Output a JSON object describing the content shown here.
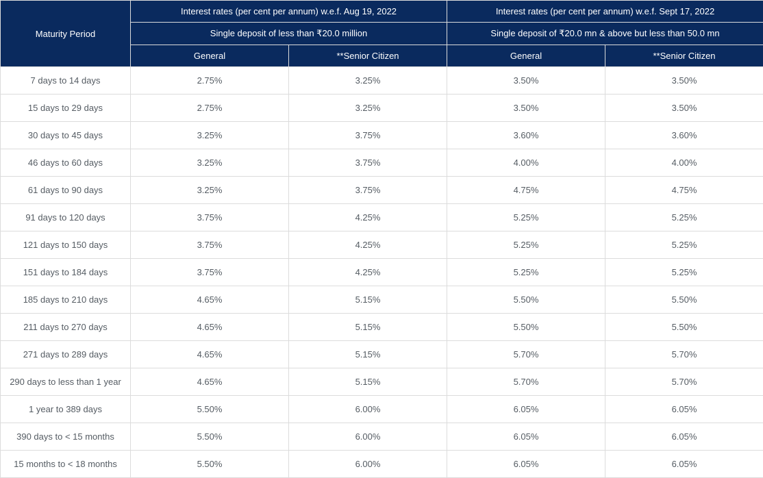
{
  "table": {
    "header": {
      "maturity_label": "Maturity Period",
      "group1_title": "Interest rates (per cent per annum) w.e.f. Aug 19, 2022",
      "group1_sub": "Single deposit of less than ₹20.0 million",
      "group2_title": "Interest rates (per cent per annum) w.e.f. Sept 17, 2022",
      "group2_sub": "Single deposit of ₹20.0 mn & above but less than 50.0 mn",
      "col_general": "General",
      "col_senior": "**Senior Citizen"
    },
    "rows": [
      {
        "maturity": "7 days to 14 days",
        "g1_general": "2.75%",
        "g1_senior": "3.25%",
        "g2_general": "3.50%",
        "g2_senior": "3.50%"
      },
      {
        "maturity": "15 days to 29 days",
        "g1_general": "2.75%",
        "g1_senior": "3.25%",
        "g2_general": "3.50%",
        "g2_senior": "3.50%"
      },
      {
        "maturity": "30 days to 45 days",
        "g1_general": "3.25%",
        "g1_senior": "3.75%",
        "g2_general": "3.60%",
        "g2_senior": "3.60%"
      },
      {
        "maturity": "46 days to 60 days",
        "g1_general": "3.25%",
        "g1_senior": "3.75%",
        "g2_general": "4.00%",
        "g2_senior": "4.00%"
      },
      {
        "maturity": "61 days to 90 days",
        "g1_general": "3.25%",
        "g1_senior": "3.75%",
        "g2_general": "4.75%",
        "g2_senior": "4.75%"
      },
      {
        "maturity": "91 days to 120 days",
        "g1_general": "3.75%",
        "g1_senior": "4.25%",
        "g2_general": "5.25%",
        "g2_senior": "5.25%"
      },
      {
        "maturity": "121 days to 150 days",
        "g1_general": "3.75%",
        "g1_senior": "4.25%",
        "g2_general": "5.25%",
        "g2_senior": "5.25%"
      },
      {
        "maturity": "151 days to 184 days",
        "g1_general": "3.75%",
        "g1_senior": "4.25%",
        "g2_general": "5.25%",
        "g2_senior": "5.25%"
      },
      {
        "maturity": "185 days to 210 days",
        "g1_general": "4.65%",
        "g1_senior": "5.15%",
        "g2_general": "5.50%",
        "g2_senior": "5.50%"
      },
      {
        "maturity": "211 days to 270 days",
        "g1_general": "4.65%",
        "g1_senior": "5.15%",
        "g2_general": "5.50%",
        "g2_senior": "5.50%"
      },
      {
        "maturity": "271 days to 289 days",
        "g1_general": "4.65%",
        "g1_senior": "5.15%",
        "g2_general": "5.70%",
        "g2_senior": "5.70%"
      },
      {
        "maturity": "290 days to less than 1 year",
        "g1_general": "4.65%",
        "g1_senior": "5.15%",
        "g2_general": "5.70%",
        "g2_senior": "5.70%"
      },
      {
        "maturity": "1 year to 389 days",
        "g1_general": "5.50%",
        "g1_senior": "6.00%",
        "g2_general": "6.05%",
        "g2_senior": "6.05%"
      },
      {
        "maturity": "390 days to < 15 months",
        "g1_general": "5.50%",
        "g1_senior": "6.00%",
        "g2_general": "6.05%",
        "g2_senior": "6.05%"
      },
      {
        "maturity": "15 months to < 18 months",
        "g1_general": "5.50%",
        "g1_senior": "6.00%",
        "g2_general": "6.05%",
        "g2_senior": "6.05%"
      }
    ],
    "colors": {
      "header_bg": "#0a2a5e",
      "header_fg": "#ffffff",
      "cell_fg": "#555c63",
      "border": "#dcdcdc",
      "body_bg": "#ffffff"
    }
  }
}
